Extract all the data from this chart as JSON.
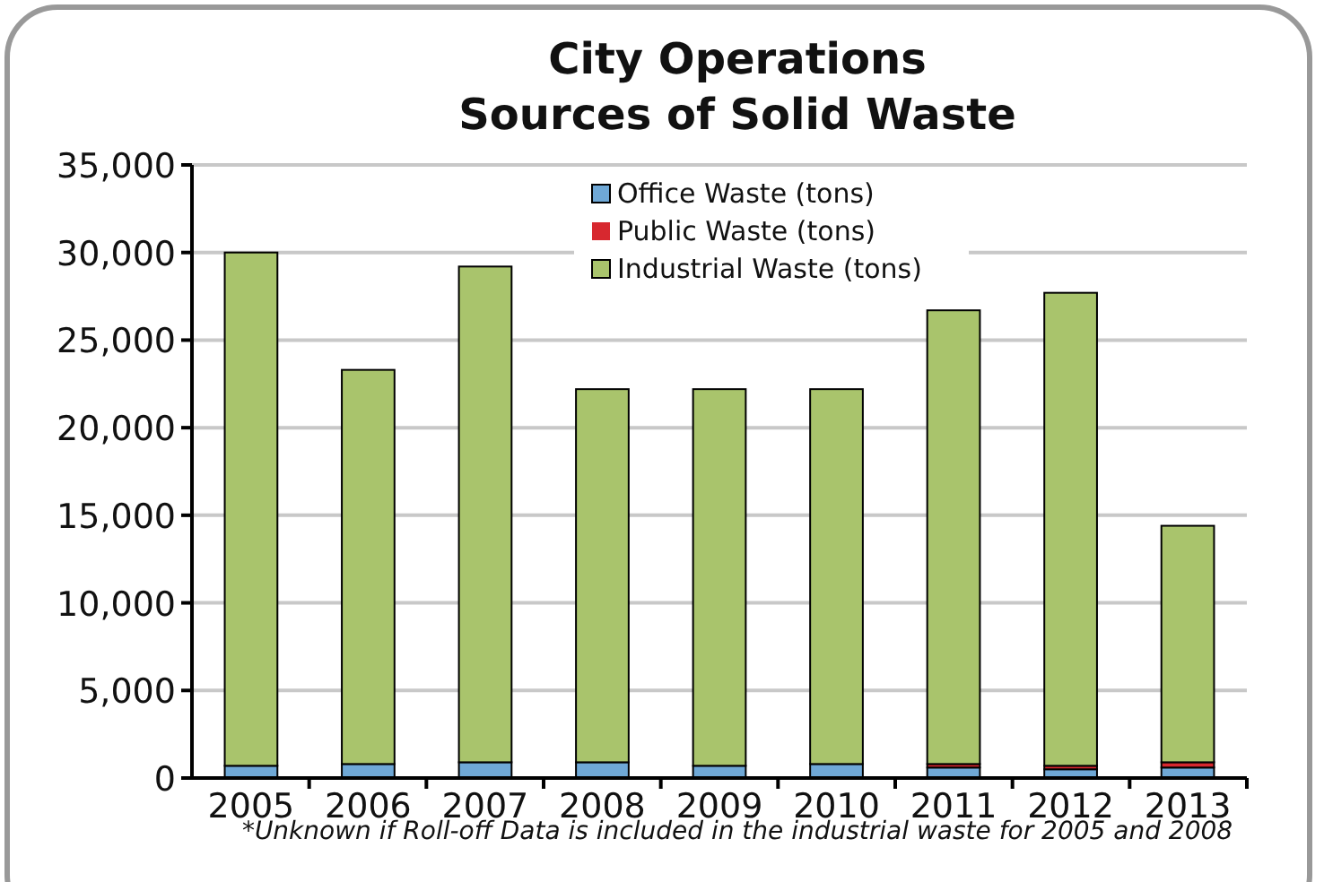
{
  "chart_data": {
    "type": "bar",
    "stacked": true,
    "title": "City Operations\nSources of Solid Waste",
    "categories": [
      "2005",
      "2006",
      "2007",
      "2008",
      "2009",
      "2010",
      "2011",
      "2012",
      "2013"
    ],
    "series": [
      {
        "name": "Office Waste (tons)",
        "color": "#6fa8d6",
        "values": [
          700,
          800,
          900,
          900,
          700,
          800,
          600,
          500,
          600
        ]
      },
      {
        "name": "Public Waste (tons)",
        "color": "#d7282f",
        "values": [
          0,
          0,
          0,
          0,
          0,
          0,
          200,
          200,
          300
        ]
      },
      {
        "name": "Industrial Waste (tons)",
        "color": "#a9c46c",
        "values": [
          29300,
          22500,
          28300,
          21300,
          21500,
          21400,
          25900,
          27000,
          13500
        ]
      }
    ],
    "ylim": [
      0,
      35000
    ],
    "yticks": [
      {
        "value": 0,
        "label": "0"
      },
      {
        "value": 5000,
        "label": "5,000"
      },
      {
        "value": 10000,
        "label": "10,000"
      },
      {
        "value": 15000,
        "label": "15,000"
      },
      {
        "value": 20000,
        "label": "20,000"
      },
      {
        "value": 25000,
        "label": "25,000"
      },
      {
        "value": 30000,
        "label": "30,000"
      },
      {
        "value": 35000,
        "label": "35,000"
      }
    ],
    "grid": "y",
    "legend": "top",
    "annotations": [
      "*Unknown if Roll-off Data is included in the industrial waste for 2005 and 2008"
    ]
  }
}
